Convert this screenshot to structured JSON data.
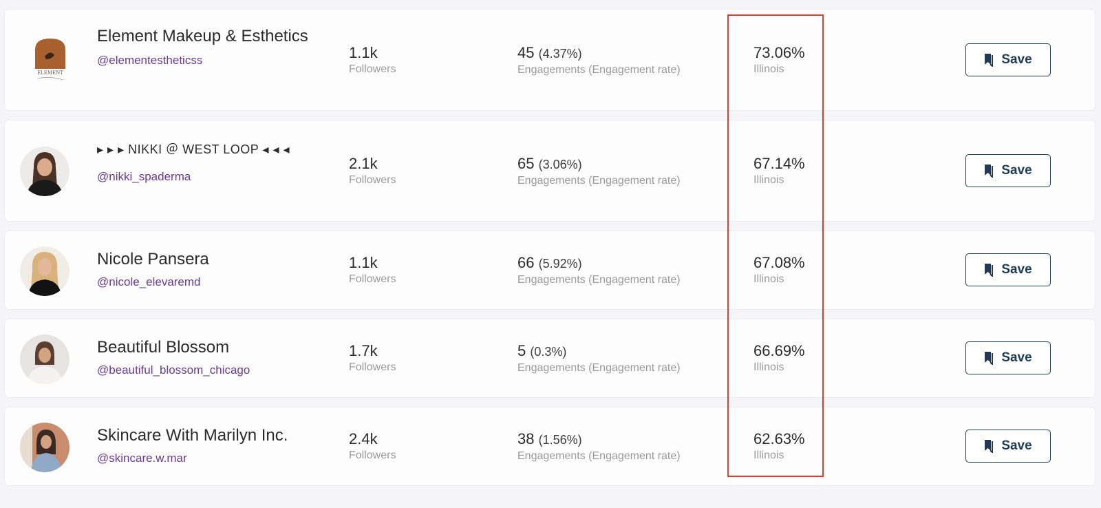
{
  "metric_labels": {
    "followers": "Followers",
    "engagements": "Engagements (Engagement rate)"
  },
  "save_label": "Save",
  "rows": [
    {
      "name": "Element Makeup & Esthetics",
      "handle": "@elementestheticss",
      "followers": "1.1k",
      "engagements": "45",
      "engagement_rate": "(4.37%)",
      "audience_pct": "73.06%",
      "location": "Illinois",
      "logo_text": "ELEMENT"
    },
    {
      "name": "▸ ▸ ▸ NIKKI ＠ WEST LOOP ◂ ◂ ◂",
      "handle": "@nikki_spaderma",
      "followers": "2.1k",
      "engagements": "65",
      "engagement_rate": "(3.06%)",
      "audience_pct": "67.14%",
      "location": "Illinois"
    },
    {
      "name": "Nicole Pansera",
      "handle": "@nicole_elevaremd",
      "followers": "1.1k",
      "engagements": "66",
      "engagement_rate": "(5.92%)",
      "audience_pct": "67.08%",
      "location": "Illinois"
    },
    {
      "name": "Beautiful Blossom",
      "handle": "@beautiful_blossom_chicago",
      "followers": "1.7k",
      "engagements": "5",
      "engagement_rate": "(0.3%)",
      "audience_pct": "66.69%",
      "location": "Illinois"
    },
    {
      "name": "Skincare With Marilyn Inc.",
      "handle": "@skincare.w.mar",
      "followers": "2.4k",
      "engagements": "38",
      "engagement_rate": "(1.56%)",
      "audience_pct": "62.63%",
      "location": "Illinois"
    }
  ],
  "colors": {
    "handle": "#6a3a93",
    "save_button": "#1f3b57",
    "highlight_box": "#e8392a"
  },
  "icons": {
    "save": "bookmark-icon"
  }
}
